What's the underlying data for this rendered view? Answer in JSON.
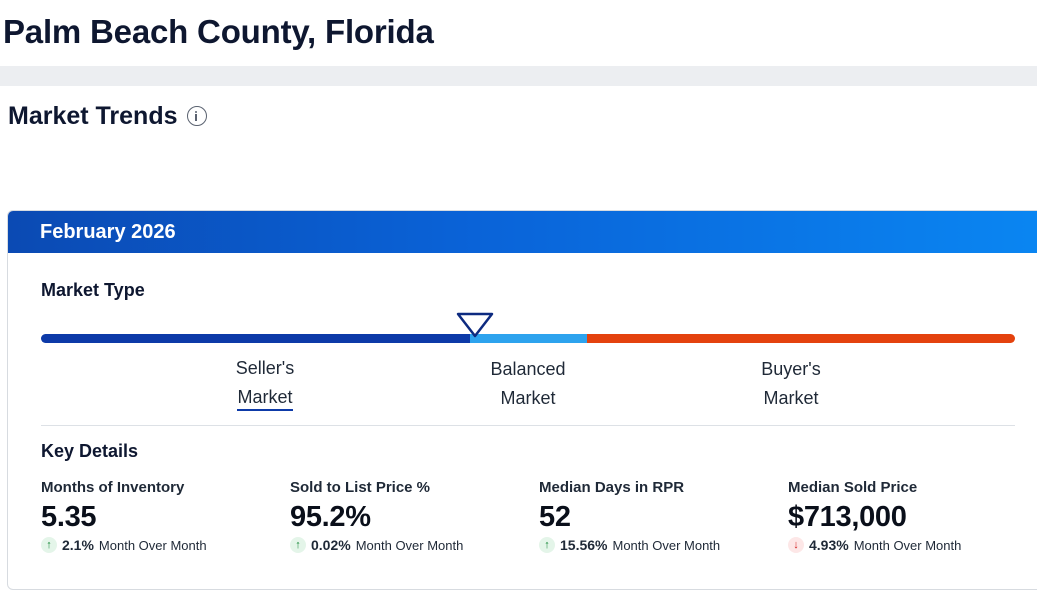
{
  "header": {
    "title": "Palm Beach County, Florida"
  },
  "section": {
    "title": "Market Trends",
    "info_icon": "info-icon"
  },
  "card": {
    "period": "February 2026",
    "market_type_label": "Market Type",
    "market_types": {
      "seller_line1": "Seller's",
      "seller_line2": "Market",
      "balanced_line1": "Balanced",
      "balanced_line2": "Market",
      "buyer_line1": "Buyer's",
      "buyer_line2": "Market"
    },
    "selected_market_type": "Seller's Market",
    "colors": {
      "seller": "#0d3aa8",
      "balanced": "#2da3ee",
      "buyer": "#e4420e",
      "header": "#0a63d8"
    },
    "key_details_label": "Key Details",
    "stats": [
      {
        "label": "Months of Inventory",
        "value": "5.35",
        "direction": "up",
        "change": "2.1%",
        "period": "Month Over Month"
      },
      {
        "label": "Sold to List Price %",
        "value": "95.2%",
        "direction": "up",
        "change": "0.02%",
        "period": "Month Over Month"
      },
      {
        "label": "Median Days in RPR",
        "value": "52",
        "direction": "up",
        "change": "15.56%",
        "period": "Month Over Month"
      },
      {
        "label": "Median Sold Price",
        "value": "$713,000",
        "direction": "down",
        "change": "4.93%",
        "period": "Month Over Month"
      }
    ],
    "icons": {
      "up": "↑",
      "down": "↓"
    }
  }
}
